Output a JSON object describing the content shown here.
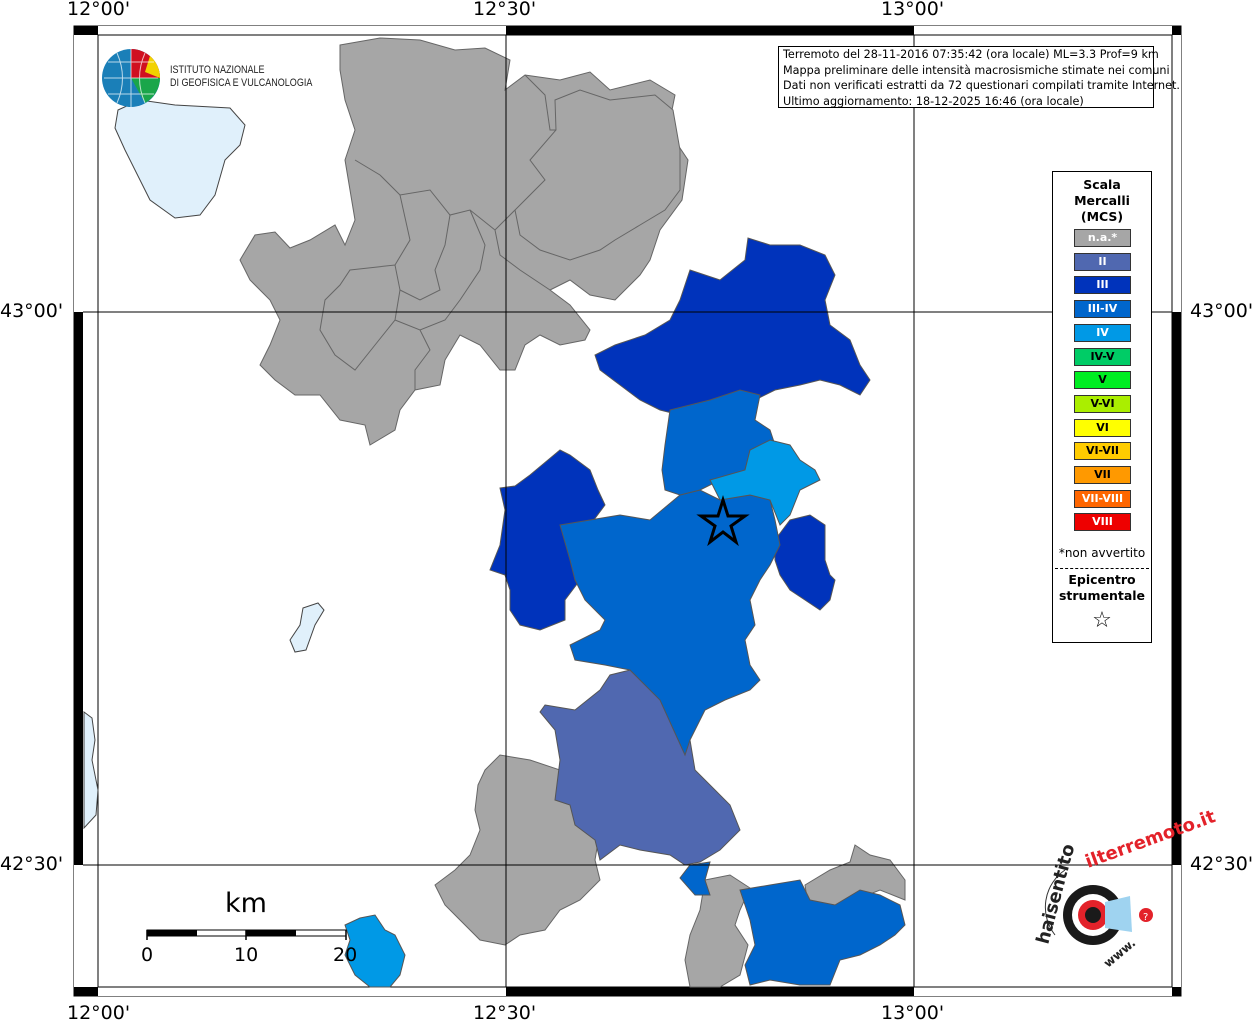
{
  "map": {
    "coords": {
      "top": [
        "12°00'",
        "12°30'",
        "13°00'"
      ],
      "bottom": [
        "12°00'",
        "12°30'",
        "13°00'"
      ],
      "left": [
        "43°00'",
        "42°30'"
      ],
      "right": [
        "43°00'",
        "42°30'"
      ]
    },
    "info_lines": [
      "Terremoto del 28-11-2016 07:35:42 (ora locale) ML=3.3 Prof=9 km",
      "Mappa preliminare delle intensità macrosismiche stimate nei comuni",
      "Dati non verificati estratti da 72 questionari compilati tramite Internet.",
      "Ultimo aggiornamento: 18-12-2025 16:46 (ora locale)"
    ],
    "institute_logo": {
      "line1": "ISTITUTO NAZIONALE",
      "line2": "DI GEOFISICA E VULCANOLOGIA"
    },
    "legend": {
      "title_lines": [
        "Scala",
        "Mercalli",
        "(MCS)"
      ],
      "items": [
        {
          "label": "n.a.*",
          "color": "#a6a6a6"
        },
        {
          "label": "II",
          "color": "#5068b0"
        },
        {
          "label": "III",
          "color": "#0033bb"
        },
        {
          "label": "III-IV",
          "color": "#0066cc"
        },
        {
          "label": "IV",
          "color": "#0099e6"
        },
        {
          "label": "IV-V",
          "color": "#00cc66"
        },
        {
          "label": "V",
          "color": "#00ee22"
        },
        {
          "label": "V-VI",
          "color": "#aaee00"
        },
        {
          "label": "VI",
          "color": "#ffff00"
        },
        {
          "label": "VI-VII",
          "color": "#ffcc00"
        },
        {
          "label": "VII",
          "color": "#ff9900"
        },
        {
          "label": "VII-VIII",
          "color": "#ff6600"
        },
        {
          "label": "VIII",
          "color": "#ee0000"
        }
      ],
      "note": "*non avvertito",
      "epicenter_lines": [
        "Epicentro",
        "strumentale"
      ],
      "epicenter_symbol": "☆"
    },
    "scale_bar": {
      "unit": "km",
      "ticks": [
        "0",
        "10",
        "20"
      ]
    },
    "colors": {
      "lake": "#e0f0fb",
      "na": "#a6a6a6",
      "border": "#666666"
    }
  }
}
